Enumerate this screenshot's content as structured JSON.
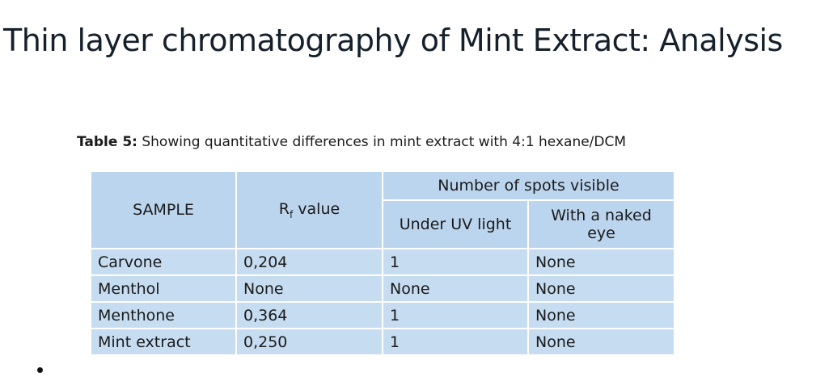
{
  "header": {
    "title": "Thin layer chromatography of Mint Extract: Analysis"
  },
  "caption": {
    "label": "Table 5:",
    "text": "Showing quantitative differences in mint extract with 4:1 hexane/DCM"
  },
  "table": {
    "headers": {
      "sample": "SAMPLE",
      "rf_main": "R",
      "rf_sub": "f",
      "rf_rest": "value",
      "group": "Number of spots visible",
      "uv": "Under UV light",
      "naked": "With a naked eye"
    },
    "rows": [
      [
        "Carvone",
        "0,204",
        "1",
        "None"
      ],
      [
        "Menthol",
        "None",
        "None",
        "None"
      ],
      [
        "Menthone",
        "0,364",
        "1",
        "None"
      ],
      [
        "Mint extract",
        "0,250",
        "1",
        "None"
      ]
    ]
  }
}
